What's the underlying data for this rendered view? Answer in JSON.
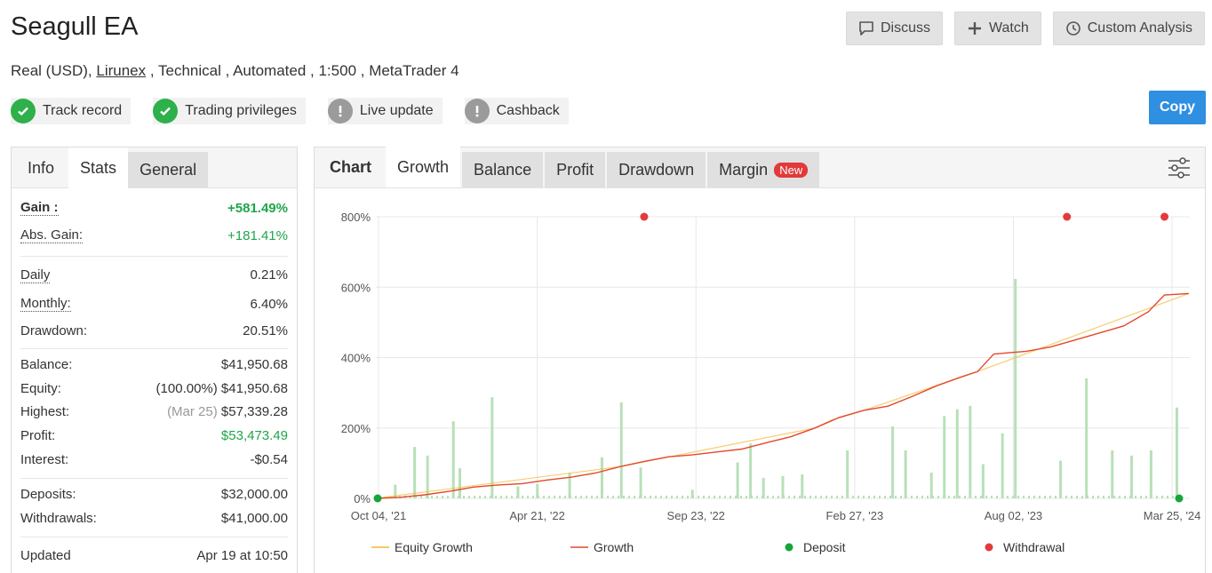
{
  "header": {
    "title": "Seagull EA",
    "subtitle_prefix": "Real (USD), ",
    "broker": "Lirunex",
    "subtitle_suffix": " , Technical , Automated , 1:500 , MetaTrader 4"
  },
  "actions": {
    "discuss": "Discuss",
    "watch": "Watch",
    "custom_analysis": "Custom Analysis",
    "copy": "Copy"
  },
  "badges": [
    {
      "label": "Track record",
      "status": "ok"
    },
    {
      "label": "Trading privileges",
      "status": "ok"
    },
    {
      "label": "Live update",
      "status": "warn"
    },
    {
      "label": "Cashback",
      "status": "warn"
    }
  ],
  "left_tabs": {
    "info": "Info",
    "stats": "Stats",
    "general": "General"
  },
  "stats": {
    "gain_label": "Gain :",
    "gain_value": "+581.49%",
    "abs_gain_label": "Abs. Gain:",
    "abs_gain_value": "+181.41%",
    "daily_label": "Daily",
    "daily_value": "0.21%",
    "monthly_label": "Monthly:",
    "monthly_value": "6.40%",
    "drawdown_label": "Drawdown:",
    "drawdown_value": "20.51%",
    "balance_label": "Balance:",
    "balance_value": "$41,950.68",
    "equity_label": "Equity:",
    "equity_value": "(100.00%) $41,950.68",
    "highest_label": "Highest:",
    "highest_date": "(Mar 25)",
    "highest_value": "$57,339.28",
    "profit_label": "Profit:",
    "profit_value": "$53,473.49",
    "interest_label": "Interest:",
    "interest_value": "-$0.54",
    "deposits_label": "Deposits:",
    "deposits_value": "$32,000.00",
    "withdrawals_label": "Withdrawals:",
    "withdrawals_value": "$41,000.00",
    "updated_label": "Updated",
    "updated_value": "Apr 19 at 10:50"
  },
  "chart_tabs": {
    "chart": "Chart",
    "growth": "Growth",
    "balance": "Balance",
    "profit": "Profit",
    "drawdown": "Drawdown",
    "margin": "Margin",
    "new_badge": "New"
  },
  "colors": {
    "growth": "#e2492b",
    "equity": "#f5b731",
    "bars": "#b8e0b8",
    "deposit": "#17a53b",
    "withdrawal": "#e33b3b",
    "accent": "#2f8fe0"
  },
  "chart_data": {
    "type": "line",
    "title": "",
    "xlabel": "",
    "ylabel": "",
    "ylim": [
      0,
      800
    ],
    "y_ticks": [
      "800%",
      "600%",
      "400%",
      "200%",
      "0%"
    ],
    "x_ticks": [
      "Oct 04, '21",
      "Apr 21, '22",
      "Sep 23, '22",
      "Feb 27, '23",
      "Aug 02, '23",
      "Mar 25, '24"
    ],
    "grid": true,
    "legend_position": "bottom",
    "legend": [
      "Equity Growth",
      "Growth",
      "Deposit",
      "Withdrawal"
    ],
    "series": [
      {
        "name": "Growth",
        "points": [
          [
            0,
            0
          ],
          [
            0.03,
            3
          ],
          [
            0.06,
            10
          ],
          [
            0.09,
            20
          ],
          [
            0.12,
            32
          ],
          [
            0.15,
            38
          ],
          [
            0.18,
            42
          ],
          [
            0.21,
            52
          ],
          [
            0.24,
            60
          ],
          [
            0.27,
            72
          ],
          [
            0.3,
            90
          ],
          [
            0.33,
            105
          ],
          [
            0.36,
            118
          ],
          [
            0.39,
            124
          ],
          [
            0.42,
            132
          ],
          [
            0.45,
            140
          ],
          [
            0.48,
            158
          ],
          [
            0.51,
            175
          ],
          [
            0.54,
            200
          ],
          [
            0.57,
            230
          ],
          [
            0.6,
            250
          ],
          [
            0.63,
            262
          ],
          [
            0.66,
            290
          ],
          [
            0.69,
            320
          ],
          [
            0.72,
            345
          ],
          [
            0.74,
            360
          ],
          [
            0.76,
            410
          ],
          [
            0.8,
            418
          ],
          [
            0.83,
            430
          ],
          [
            0.86,
            450
          ],
          [
            0.89,
            470
          ],
          [
            0.92,
            490
          ],
          [
            0.95,
            530
          ],
          [
            0.97,
            578
          ],
          [
            1.0,
            582
          ]
        ]
      },
      {
        "name": "Equity Growth",
        "points": [
          [
            0,
            0
          ],
          [
            0.3,
            90
          ],
          [
            0.54,
            200
          ],
          [
            0.56,
            222
          ],
          [
            0.6,
            250
          ],
          [
            0.74,
            360
          ],
          [
            1.0,
            582
          ]
        ]
      },
      {
        "name": "Deposit",
        "points": [
          [
            0,
            0
          ],
          [
            1.0,
            0
          ]
        ]
      },
      {
        "name": "Withdrawal",
        "points": [
          [
            0.33,
            800
          ],
          [
            0.85,
            800
          ],
          [
            0.97,
            800
          ]
        ]
      }
    ],
    "bars": [
      {
        "x": 0.03,
        "v": 40
      },
      {
        "x": 0.06,
        "v": 150
      },
      {
        "x": 0.08,
        "v": 125
      },
      {
        "x": 0.12,
        "v": 225
      },
      {
        "x": 0.13,
        "v": 88
      },
      {
        "x": 0.18,
        "v": 295
      },
      {
        "x": 0.22,
        "v": 35
      },
      {
        "x": 0.25,
        "v": 42
      },
      {
        "x": 0.3,
        "v": 75
      },
      {
        "x": 0.35,
        "v": 120
      },
      {
        "x": 0.38,
        "v": 280
      },
      {
        "x": 0.41,
        "v": 90
      },
      {
        "x": 0.49,
        "v": 25
      },
      {
        "x": 0.56,
        "v": 105
      },
      {
        "x": 0.58,
        "v": 160
      },
      {
        "x": 0.6,
        "v": 60
      },
      {
        "x": 0.63,
        "v": 65
      },
      {
        "x": 0.66,
        "v": 70
      },
      {
        "x": 0.73,
        "v": 140
      },
      {
        "x": 0.8,
        "v": 210
      },
      {
        "x": 0.82,
        "v": 140
      },
      {
        "x": 0.86,
        "v": 75
      },
      {
        "x": 0.88,
        "v": 240
      },
      {
        "x": 0.9,
        "v": 260
      },
      {
        "x": 0.92,
        "v": 270
      },
      {
        "x": 0.94,
        "v": 100
      },
      {
        "x": 0.97,
        "v": 190
      },
      {
        "x": 0.99,
        "v": 640
      },
      {
        "x": 1.06,
        "v": 110
      },
      {
        "x": 1.1,
        "v": 350
      },
      {
        "x": 1.14,
        "v": 140
      },
      {
        "x": 1.17,
        "v": 125
      },
      {
        "x": 1.2,
        "v": 140
      },
      {
        "x": 1.24,
        "v": 265
      }
    ]
  }
}
